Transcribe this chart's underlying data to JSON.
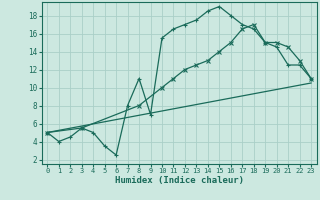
{
  "xlabel": "Humidex (Indice chaleur)",
  "background_color": "#cce8e0",
  "grid_color": "#aacfc8",
  "line_color": "#1a6b5a",
  "xlim": [
    -0.5,
    23.5
  ],
  "ylim": [
    1.5,
    19.5
  ],
  "xticks": [
    0,
    1,
    2,
    3,
    4,
    5,
    6,
    7,
    8,
    9,
    10,
    11,
    12,
    13,
    14,
    15,
    16,
    17,
    18,
    19,
    20,
    21,
    22,
    23
  ],
  "yticks": [
    2,
    4,
    6,
    8,
    10,
    12,
    14,
    16,
    18
  ],
  "line1_x": [
    0,
    1,
    2,
    3,
    4,
    5,
    6,
    7,
    8,
    9,
    10,
    11,
    12,
    13,
    14,
    15,
    16,
    17,
    18,
    19,
    20,
    21,
    22,
    23
  ],
  "line1_y": [
    5,
    4,
    4.5,
    5.5,
    5,
    3.5,
    2.5,
    8,
    11,
    7,
    15.5,
    16.5,
    17,
    17.5,
    18.5,
    19,
    18,
    17,
    16.5,
    15,
    14.5,
    12.5,
    12.5,
    11
  ],
  "line2_x": [
    0,
    3,
    8,
    10,
    11,
    12,
    13,
    14,
    15,
    16,
    17,
    18,
    19,
    20,
    21,
    22,
    23
  ],
  "line2_y": [
    5,
    5.5,
    8,
    10,
    11,
    12,
    12.5,
    13,
    14,
    15,
    16.5,
    17,
    15,
    15,
    14.5,
    13,
    11
  ],
  "line3_x": [
    0,
    23
  ],
  "line3_y": [
    5,
    10.5
  ]
}
